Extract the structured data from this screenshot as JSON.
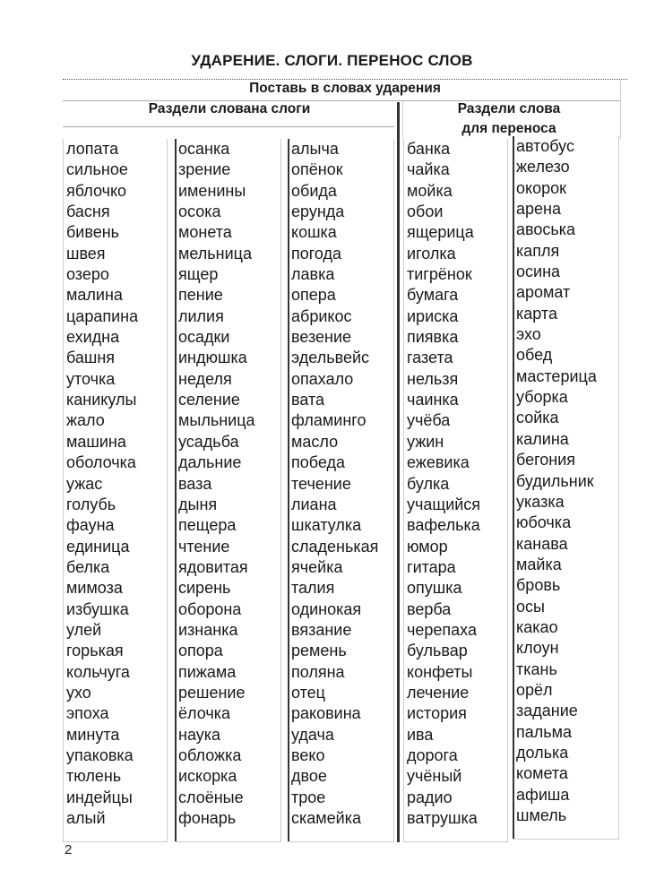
{
  "title": "УДАРЕНИЕ.  СЛОГИ. ПЕРЕНОС  СЛОВ",
  "header": {
    "stress": "Поставь в словах ударения",
    "syllables": "Раздели слована слоги",
    "hyphenation_line1": "Раздели слова",
    "hyphenation_line2": "для переноса"
  },
  "columns": [
    [
      "лопата",
      "сильное",
      "яблочко",
      "басня",
      "бивень",
      "швея",
      "озеро",
      "малина",
      "царапина",
      "ехидна",
      "башня",
      "уточка",
      "каникулы",
      "жало",
      "машина",
      "оболочка",
      "ужас",
      "голубь",
      "фауна",
      "единица",
      "белка",
      "мимоза",
      "избушка",
      "улей",
      "горькая",
      "кольчуга",
      "ухо",
      "эпоха",
      "минута",
      "упаковка",
      "тюлень",
      "индейцы",
      "алый"
    ],
    [
      "осанка",
      "зрение",
      "именины",
      "осока",
      "монета",
      "мельница",
      "ящер",
      "пение",
      "лилия",
      "осадки",
      "индюшка",
      "неделя",
      "селение",
      "мыльница",
      "усадьба",
      "дальние",
      "ваза",
      "дыня",
      "пещера",
      "чтение",
      "ядовитая",
      "сирень",
      "оборона",
      "изнанка",
      "опора",
      "пижама",
      "решение",
      "ёлочка",
      "наука",
      "обложка",
      "искорка",
      "слоёные",
      "фонарь"
    ],
    [
      "алыча",
      "опёнок",
      "обида",
      "ерунда",
      "кошка",
      "погода",
      "лавка",
      "опера",
      "абрикос",
      "везение",
      "эдельвейс",
      "опахало",
      "вата",
      "фламинго",
      "масло",
      "победа",
      "течение",
      "лиана",
      "шкатулка",
      "сладенькая",
      "ячейка",
      "талия",
      "одинокая",
      "вязание",
      "ремень",
      "поляна",
      "отец",
      "раковина",
      "удача",
      "веко",
      "двое",
      "трое",
      "скамейка"
    ],
    [
      "банка",
      "чайка",
      "мойка",
      "обои",
      "ящерица",
      "иголка",
      "тигрёнок",
      "бумага",
      "ириска",
      "пиявка",
      "газета",
      "нельзя",
      "чаинка",
      "учёба",
      "ужин",
      "ежевика",
      "булка",
      "учащийся",
      "вафелька",
      "юмор",
      "гитара",
      "опушка",
      "верба",
      "черепаха",
      "бульвар",
      "конфеты",
      "лечение",
      "история",
      "ива",
      "дорога",
      "учёный",
      "радио",
      "ватрушка"
    ],
    [
      "автобус",
      "железо",
      "окорок",
      "арена",
      "авоська",
      "капля",
      "осина",
      "аромат",
      "карта",
      "эхо",
      "обед",
      "мастерица",
      "уборка",
      "сойка",
      "калина",
      "бегония",
      "будильник",
      "указка",
      "юбочка",
      "канава",
      "майка",
      "бровь",
      "осы",
      "какао",
      "клоун",
      "ткань",
      "орёл",
      "задание",
      "пальма",
      "долька",
      "комета",
      "афиша",
      "шмель"
    ]
  ],
  "page_number": "2"
}
